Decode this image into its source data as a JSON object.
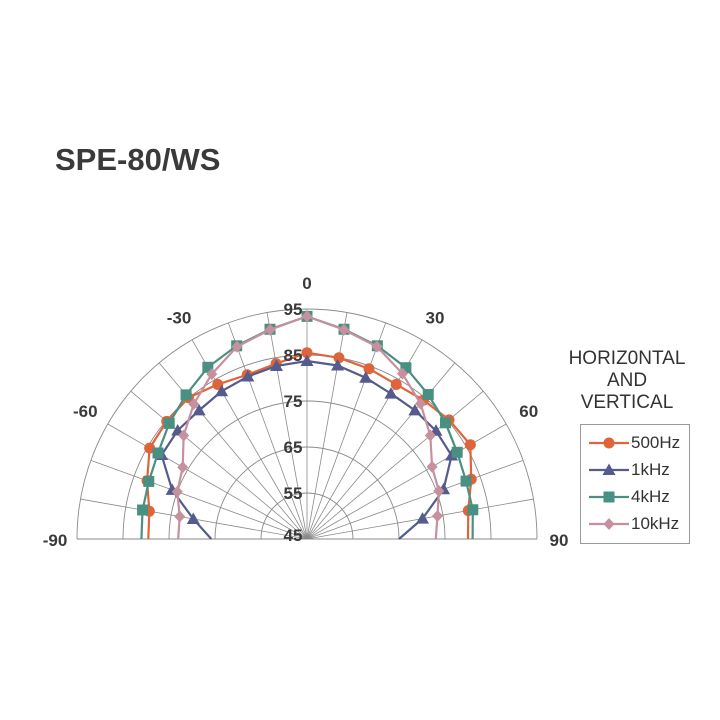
{
  "title": "SPE-80/WS",
  "chart_data": {
    "type": "polar",
    "title": "SPE-80/WS",
    "legend_title": [
      "HORIZ0NTAL",
      "AND",
      "VERTICAL"
    ],
    "legend_placement": "right",
    "angle_range": [
      -90,
      90
    ],
    "angle_tick_labels": [
      "-90",
      "-60",
      "-30",
      "0",
      "30",
      "60",
      "90"
    ],
    "angle_ticks": [
      -90,
      -60,
      -30,
      0,
      30,
      60,
      90
    ],
    "radial_range": [
      45,
      95
    ],
    "radial_tick_labels": [
      "45",
      "55",
      "65",
      "75",
      "85",
      "95"
    ],
    "radial_ticks": [
      45,
      55,
      65,
      75,
      85,
      95
    ],
    "grid": true,
    "angles": [
      -90,
      -80,
      -70,
      -60,
      -50,
      -40,
      -30,
      -20,
      -10,
      0,
      10,
      20,
      30,
      40,
      50,
      60,
      70,
      80,
      90
    ],
    "series": [
      {
        "name": "500Hz",
        "color": "#e0643a",
        "marker": "circle",
        "values": [
          79.5,
          79.8,
          82,
          84.5,
          84.8,
          85.1,
          83.8,
          83,
          83.7,
          85.5,
          85,
          84.4,
          83.8,
          84.4,
          85.3,
          86,
          83,
          80.6,
          80
        ]
      },
      {
        "name": "1kHz",
        "color": "#555b8c",
        "marker": "triangle",
        "values": [
          65.8,
          70.1,
          76.2,
          81.5,
          81.7,
          81.5,
          82.1,
          82.6,
          83.2,
          83.7,
          83.3,
          82.3,
          81.5,
          81.5,
          81.6,
          81.3,
          76.6,
          70.5,
          65
        ]
      },
      {
        "name": "4kHz",
        "color": "#4a9082",
        "marker": "square",
        "values": [
          81,
          81.3,
          81.6,
          82.4,
          84.1,
          85.9,
          88.1,
          89.7,
          91.3,
          93.4,
          91.3,
          89.7,
          88,
          86,
          84.3,
          82.7,
          81.8,
          81.6,
          81
        ]
      },
      {
        "name": "10kHz",
        "color": "#c6909f",
        "marker": "diamond",
        "values": [
          73,
          73.1,
          75,
          76.2,
          80,
          83.3,
          86.4,
          89.5,
          91.2,
          93.4,
          91.2,
          89.5,
          86.5,
          83.4,
          80,
          76.4,
          75.5,
          73.8,
          73
        ]
      }
    ]
  }
}
